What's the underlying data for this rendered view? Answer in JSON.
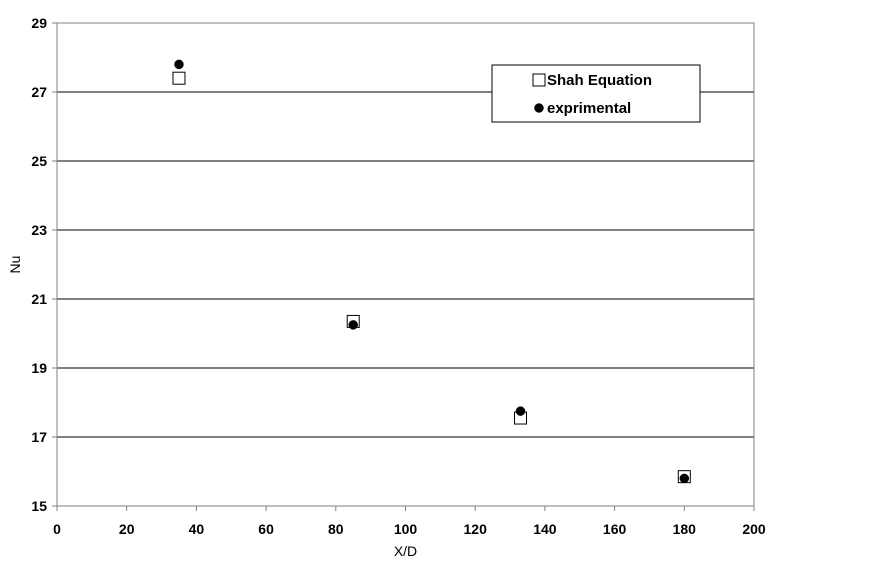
{
  "chart_data": {
    "type": "scatter",
    "title": "",
    "xlabel": "X/D",
    "ylabel": "Nu",
    "xlim": [
      0,
      200
    ],
    "ylim": [
      15,
      29
    ],
    "xticks": [
      0,
      20,
      40,
      60,
      80,
      100,
      120,
      140,
      160,
      180,
      200
    ],
    "yticks": [
      15,
      17,
      19,
      21,
      23,
      25,
      27,
      29
    ],
    "grid": {
      "y_major": true,
      "x_major": false
    },
    "legend_position": "top-right",
    "series": [
      {
        "name": "Shah Equation",
        "marker": "open-square",
        "color": "#000000",
        "points": [
          {
            "x": 35,
            "y": 27.4
          },
          {
            "x": 85,
            "y": 20.35
          },
          {
            "x": 133,
            "y": 17.55
          },
          {
            "x": 180,
            "y": 15.85
          }
        ]
      },
      {
        "name": "exprimental",
        "marker": "filled-circle",
        "color": "#000000",
        "points": [
          {
            "x": 35,
            "y": 27.8
          },
          {
            "x": 85,
            "y": 20.25
          },
          {
            "x": 133,
            "y": 17.75
          },
          {
            "x": 180,
            "y": 15.8
          }
        ]
      }
    ]
  }
}
